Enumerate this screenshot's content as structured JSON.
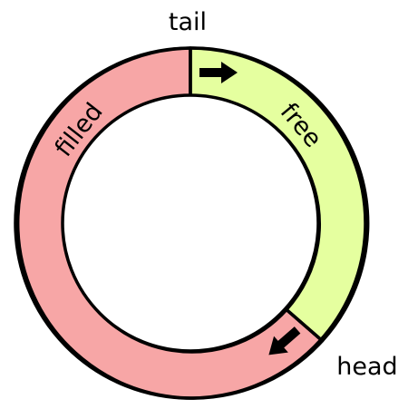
{
  "diagram": {
    "labels": {
      "tail": "tail",
      "head": "head",
      "free": "free",
      "filled": "filled"
    },
    "colors": {
      "filled": "#f7a6a6",
      "free": "#e5ff9f",
      "outline": "#000000",
      "arrow": "#000000",
      "background": "#ffffff"
    },
    "icons": {
      "tail_arrow": "arrow-right-icon",
      "head_arrow": "arrow-down-left-icon"
    }
  }
}
